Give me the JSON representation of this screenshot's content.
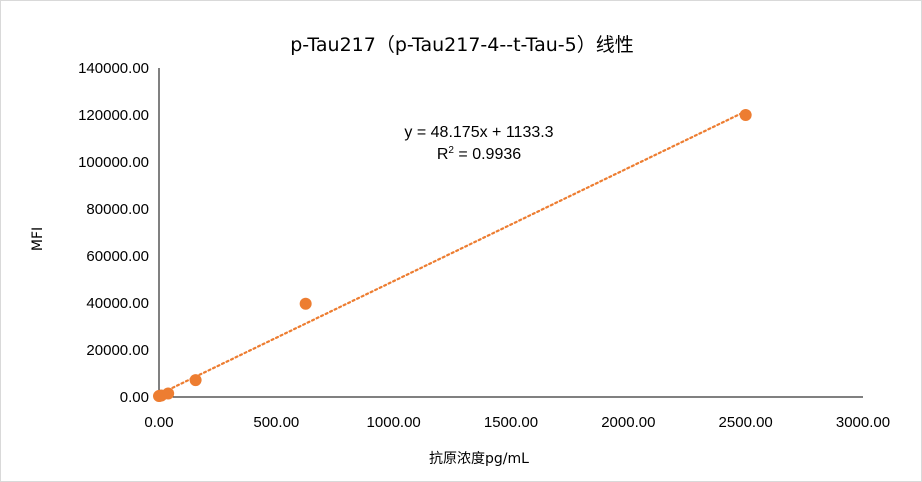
{
  "chart_data": {
    "type": "scatter",
    "title": "p-Tau217（p-Tau217-4--t-Tau-5）线性",
    "xlabel": "抗原浓度pg/mL",
    "ylabel": "MFI",
    "xlim": [
      0,
      3000
    ],
    "ylim": [
      0,
      140000
    ],
    "x_ticks": [
      "0.00",
      "500.00",
      "1000.00",
      "1500.00",
      "2000.00",
      "2500.00",
      "3000.00"
    ],
    "y_ticks": [
      "0.00",
      "20000.00",
      "40000.00",
      "60000.00",
      "80000.00",
      "100000.00",
      "120000.00",
      "140000.00"
    ],
    "grid": false,
    "legend": "none",
    "series": [
      {
        "points": [
          {
            "x": 0,
            "y": 400
          },
          {
            "x": 2.4,
            "y": 500
          },
          {
            "x": 9.8,
            "y": 650
          },
          {
            "x": 39,
            "y": 1500
          },
          {
            "x": 156,
            "y": 7200
          },
          {
            "x": 625,
            "y": 39700
          },
          {
            "x": 2500,
            "y": 120000
          }
        ]
      }
    ],
    "trendline": {
      "type": "linear",
      "slope": 48.175,
      "intercept": 1133.3,
      "equation": "y = 48.175x + 1133.3",
      "r2_prefix": "R",
      "r2_sup": "2",
      "r2_suffix": " = 0.9936"
    },
    "colors": {
      "marker": "#ed7d31",
      "trendline": "#ed7d31",
      "axis": "#000000"
    }
  }
}
